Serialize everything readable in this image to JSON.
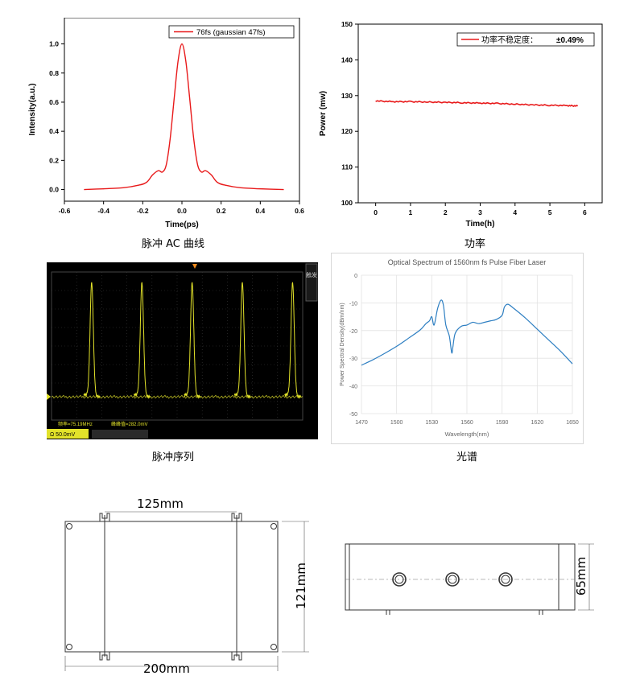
{
  "captions": {
    "ac": "脉冲 AC 曲线",
    "power": "功率",
    "pulse_train": "脉冲序列",
    "spectrum": "光谱"
  },
  "chart_data": [
    {
      "type": "line",
      "name": "ac",
      "xlabel": "Time(ps)",
      "ylabel": "Intensity(a.u.)",
      "xlim": [
        -0.6,
        0.6
      ],
      "ylim": [
        -0.08,
        1.18
      ],
      "xticks": [
        "-0.6",
        "-0.4",
        "-0.2",
        "0.0",
        "0.2",
        "0.4",
        "0.6"
      ],
      "yticks": [
        "0.0",
        "0.2",
        "0.4",
        "0.6",
        "0.8",
        "1.0"
      ],
      "legend": "top-right",
      "series": [
        {
          "name": "76fs (gaussian 47fs)",
          "color": "#e8191a",
          "x": [
            -0.5,
            -0.4,
            -0.3,
            -0.22,
            -0.18,
            -0.15,
            -0.12,
            -0.1,
            -0.08,
            -0.06,
            -0.04,
            -0.02,
            0.0,
            0.02,
            0.04,
            0.06,
            0.08,
            0.1,
            0.12,
            0.15,
            0.18,
            0.22,
            0.3,
            0.4,
            0.52
          ],
          "y": [
            0.0,
            0.005,
            0.012,
            0.03,
            0.05,
            0.1,
            0.13,
            0.12,
            0.17,
            0.35,
            0.62,
            0.88,
            1.0,
            0.88,
            0.62,
            0.35,
            0.17,
            0.12,
            0.13,
            0.1,
            0.05,
            0.03,
            0.012,
            0.005,
            0.0
          ]
        }
      ]
    },
    {
      "type": "line",
      "name": "power",
      "xlabel": "Time(h)",
      "ylabel": "Power (mw)",
      "xlim": [
        -0.5,
        6.5
      ],
      "ylim": [
        100,
        150
      ],
      "xticks": [
        "0",
        "1",
        "2",
        "3",
        "4",
        "5",
        "6"
      ],
      "yticks": [
        "100",
        "110",
        "120",
        "130",
        "140",
        "150"
      ],
      "legend": "top-right",
      "series": [
        {
          "name_prefix": "功率不稳定度：",
          "name_value": "±0.49%",
          "color": "#e8191a",
          "x": [
            0.0,
            0.5,
            1.0,
            1.5,
            2.0,
            2.5,
            3.0,
            3.5,
            4.0,
            4.5,
            5.0,
            5.5,
            5.8
          ],
          "y": [
            128.5,
            128.3,
            128.3,
            128.2,
            128.1,
            128.0,
            127.9,
            127.8,
            127.6,
            127.4,
            127.3,
            127.2,
            127.1
          ]
        }
      ]
    },
    {
      "type": "line",
      "name": "pulse_train",
      "readout_left": "频率=75.19MHz",
      "readout_right": "峰峰值=282.0mV",
      "scale_label": "Ω 50.0mV",
      "side_label": "触发",
      "pulse_positions": [
        0.16,
        0.36,
        0.56,
        0.76,
        0.96
      ],
      "color": "#e2e22a"
    },
    {
      "type": "line",
      "name": "spectrum",
      "title": "Optical Spectrum of 1560nm fs Pulse Fiber Laser",
      "xlabel": "Wavelength(nm)",
      "ylabel": "Power Spectral Density(dBm/nm)",
      "xlim": [
        1470,
        1650
      ],
      "ylim": [
        -50,
        0
      ],
      "xticks": [
        "1470",
        "1500",
        "1530",
        "1560",
        "1590",
        "1620",
        "1650"
      ],
      "yticks": [
        "0",
        "-10",
        "-20",
        "-30",
        "-40",
        "-50"
      ],
      "series": [
        {
          "color": "#2e7fc2",
          "x": [
            1470,
            1480,
            1490,
            1500,
            1510,
            1520,
            1525,
            1528,
            1530,
            1532,
            1535,
            1538,
            1540,
            1542,
            1545,
            1547,
            1548,
            1550,
            1555,
            1560,
            1565,
            1570,
            1575,
            1580,
            1585,
            1590,
            1592,
            1595,
            1600,
            1610,
            1620,
            1630,
            1640,
            1650
          ],
          "y": [
            -32.5,
            -30.5,
            -28.2,
            -25.7,
            -22.8,
            -19.8,
            -17.5,
            -16.5,
            -15.0,
            -18.0,
            -12.0,
            -9.0,
            -11.0,
            -18.0,
            -22.0,
            -28.0,
            -26.0,
            -21.0,
            -18.5,
            -18.0,
            -17.0,
            -17.5,
            -17.0,
            -16.5,
            -16.0,
            -14.5,
            -11.5,
            -10.5,
            -12.0,
            -15.5,
            -19.5,
            -23.5,
            -27.5,
            -32.0
          ]
        }
      ]
    }
  ],
  "drawings": {
    "front": {
      "top_dim": "125mm",
      "bottom_dim": "200mm",
      "right_dim": "121mm"
    },
    "side": {
      "right_dim": "65mm"
    }
  }
}
